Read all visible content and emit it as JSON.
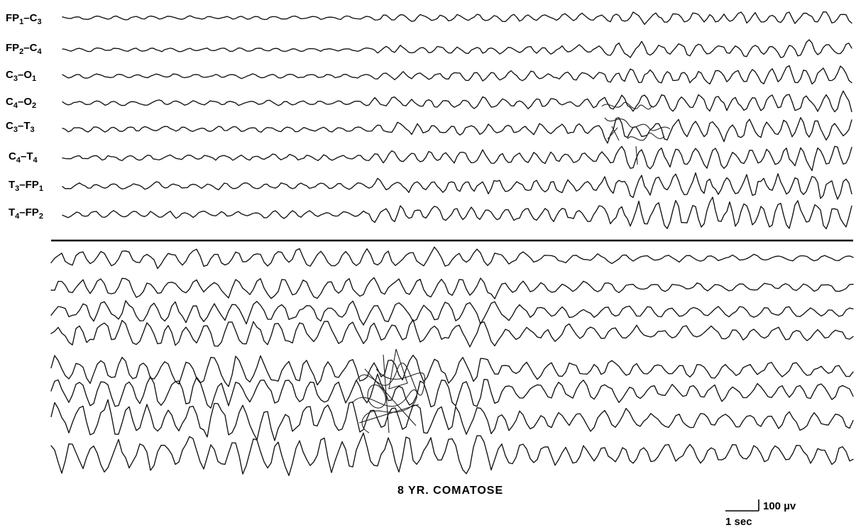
{
  "figure": {
    "caption": "8 YR. COMATOSE",
    "scale_amplitude_label": "100 µv",
    "scale_time_label": "1 sec"
  },
  "channels": [
    {
      "id": "fp1-c3",
      "a": "FP",
      "a_sub": "1",
      "b": "C",
      "b_sub": "3"
    },
    {
      "id": "fp2-c4",
      "a": "FP",
      "a_sub": "2",
      "b": "C",
      "b_sub": "4"
    },
    {
      "id": "c3-o1",
      "a": "C",
      "a_sub": "3",
      "b": "O",
      "b_sub": "1"
    },
    {
      "id": "c4-o2",
      "a": "C",
      "a_sub": "4",
      "b": "O",
      "b_sub": "2"
    },
    {
      "id": "c3-t3",
      "a": "C",
      "a_sub": "3",
      "b": "T",
      "b_sub": "3"
    },
    {
      "id": "c4-t4",
      "a": "C",
      "a_sub": "4",
      "b": "T",
      "b_sub": "4"
    },
    {
      "id": "t3-fp1",
      "a": "T",
      "a_sub": "3",
      "b": "FP",
      "b_sub": "1"
    },
    {
      "id": "t4-fp2",
      "a": "T",
      "a_sub": "4",
      "b": "FP",
      "b_sub": "2"
    }
  ]
}
